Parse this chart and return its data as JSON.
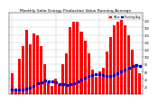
{
  "title": "Monthly Solar Energy Production Value Running Average",
  "bar_color": "#ff0000",
  "avg_color": "#0000cc",
  "bg_color": "#ffffff",
  "plot_bg": "#ffffff",
  "grid_color": "#aaaaaa",
  "values": [
    55,
    15,
    95,
    130,
    175,
    135,
    165,
    160,
    130,
    80,
    30,
    20,
    40,
    25,
    80,
    110,
    180,
    195,
    195,
    170,
    145,
    110,
    65,
    45,
    60,
    70,
    115,
    155,
    185,
    195,
    200,
    185,
    160,
    120,
    80,
    55
  ],
  "avg_values": [
    12,
    12,
    12,
    12,
    14,
    16,
    22,
    28,
    32,
    35,
    34,
    33,
    30,
    27,
    25,
    24,
    25,
    28,
    33,
    38,
    43,
    48,
    51,
    52,
    52,
    50,
    49,
    49,
    51,
    55,
    60,
    66,
    71,
    75,
    77,
    76
  ],
  "ylim": [
    0,
    220
  ],
  "ytick_values": [
    20,
    40,
    60,
    80,
    100,
    120,
    140,
    160,
    180,
    200
  ],
  "title_fontsize": 3.2,
  "tick_fontsize": 2.2,
  "legend_fontsize": 2.0,
  "bar_width": 0.75,
  "n_bars": 36,
  "marker_size": 1.5
}
